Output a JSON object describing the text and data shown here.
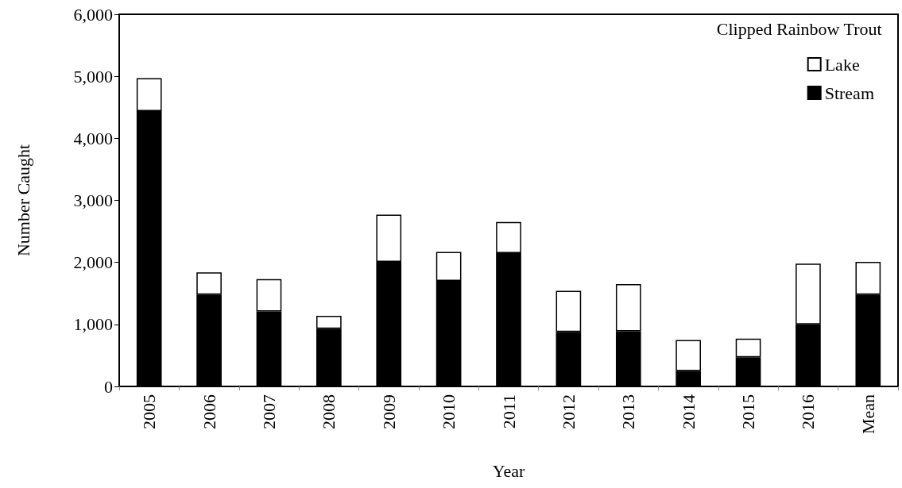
{
  "chart_data": {
    "type": "bar",
    "stacked": true,
    "xlabel": "Year",
    "ylabel": "Number Caught",
    "legend_title": "Clipped Rainbow Trout",
    "legend": "top right",
    "grid": false,
    "categories": [
      "2005",
      "2006",
      "2007",
      "2008",
      "2009",
      "2010",
      "2011",
      "2012",
      "2013",
      "2014",
      "2015",
      "2016",
      "Mean"
    ],
    "series": [
      {
        "name": "Stream",
        "color": "#000000",
        "values": [
          4440,
          1480,
          1210,
          930,
          2010,
          1700,
          2150,
          880,
          890,
          250,
          470,
          1000,
          1480
        ]
      },
      {
        "name": "Lake",
        "color": "#ffffff",
        "values": [
          530,
          360,
          520,
          210,
          760,
          470,
          500,
          660,
          760,
          500,
          300,
          980,
          530
        ]
      }
    ],
    "ylim": [
      0,
      6000
    ],
    "yticks": [
      {
        "value": 0,
        "label": "0"
      },
      {
        "value": 1000,
        "label": "1,000"
      },
      {
        "value": 2000,
        "label": "2,000"
      },
      {
        "value": 3000,
        "label": "3,000"
      },
      {
        "value": 4000,
        "label": "4,000"
      },
      {
        "value": 5000,
        "label": "5,000"
      },
      {
        "value": 6000,
        "label": "6,000"
      }
    ]
  }
}
